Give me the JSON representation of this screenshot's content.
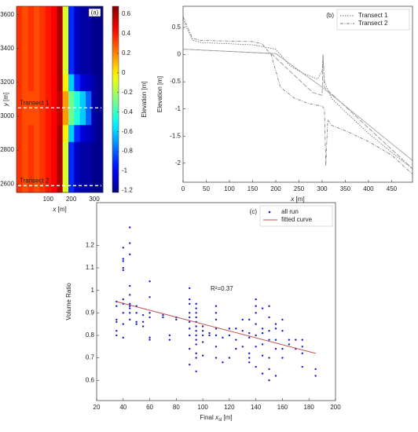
{
  "chart_data": [
    {
      "type": "heatmap",
      "label": "(a)",
      "x": [
        -25,
        0,
        25,
        50,
        75,
        100,
        125,
        150,
        175,
        200,
        225,
        250,
        275,
        300,
        325
      ],
      "y": [
        2600,
        2700,
        2800,
        2900,
        3000,
        3100,
        3200,
        3300,
        3400,
        3500,
        3600
      ],
      "z": [
        [
          0.35,
          0.3,
          0.35,
          0.3,
          0.35,
          0.4,
          0.45,
          0.6,
          -0.1,
          -0.9,
          -1.1,
          -1.15,
          -1.15,
          -1.2,
          -1.2
        ],
        [
          0.35,
          0.3,
          0.35,
          0.3,
          0.35,
          0.4,
          0.45,
          0.6,
          -0.1,
          -0.9,
          -1.1,
          -1.15,
          -1.15,
          -1.2,
          -1.2
        ],
        [
          0.35,
          0.3,
          0.35,
          0.3,
          0.35,
          0.4,
          0.45,
          0.6,
          -0.1,
          -0.9,
          -1.1,
          -1.15,
          -1.15,
          -1.2,
          -1.2
        ],
        [
          0.35,
          0.3,
          0.35,
          0.3,
          0.35,
          0.4,
          0.45,
          0.6,
          0.0,
          -0.6,
          -0.9,
          -1.05,
          -1.1,
          -1.15,
          -1.2
        ],
        [
          0.35,
          0.3,
          0.3,
          0.3,
          0.35,
          0.4,
          0.45,
          0.55,
          0.15,
          -0.3,
          -0.45,
          -0.6,
          -0.8,
          -1.15,
          -1.2
        ],
        [
          0.35,
          0.3,
          0.3,
          0.3,
          0.35,
          0.4,
          0.45,
          0.55,
          0.15,
          -0.3,
          -0.45,
          -0.6,
          -0.8,
          -1.15,
          -1.2
        ],
        [
          0.35,
          0.3,
          0.35,
          0.3,
          0.35,
          0.4,
          0.45,
          0.6,
          0.0,
          -0.6,
          -0.9,
          -1.05,
          -1.1,
          -1.15,
          -1.2
        ],
        [
          0.35,
          0.3,
          0.35,
          0.3,
          0.35,
          0.4,
          0.45,
          0.6,
          -0.1,
          -0.9,
          -1.1,
          -1.15,
          -1.15,
          -1.2,
          -1.2
        ],
        [
          0.35,
          0.3,
          0.35,
          0.3,
          0.35,
          0.4,
          0.45,
          0.6,
          -0.1,
          -0.9,
          -1.1,
          -1.15,
          -1.15,
          -1.2,
          -1.2
        ],
        [
          0.35,
          0.3,
          0.35,
          0.3,
          0.35,
          0.4,
          0.45,
          0.6,
          -0.1,
          -0.9,
          -1.1,
          -1.15,
          -1.15,
          -1.2,
          -1.2
        ],
        [
          0.35,
          0.3,
          0.35,
          0.3,
          0.35,
          0.4,
          0.45,
          0.6,
          -0.1,
          -0.9,
          -1.1,
          -1.15,
          -1.15,
          -1.2,
          -1.2
        ]
      ],
      "xlim": [
        -37.5,
        337.5
      ],
      "ylim": [
        2550,
        3650
      ],
      "xticks": [
        100,
        200,
        300
      ],
      "yticks": [
        2600,
        2800,
        3000,
        3200,
        3400,
        3600
      ],
      "xlabel": [
        {
          "text": "x",
          "italic": true
        },
        {
          "text": " [m]"
        }
      ],
      "ylabel": [
        {
          "text": "y",
          "italic": true
        },
        {
          "text": " [m]"
        }
      ],
      "colorbar": {
        "label": "Elevation [m]",
        "colormap": "jet",
        "clim": [
          -1.22,
          0.68
        ],
        "ticks": [
          0.6,
          0.4,
          0.2,
          0,
          -0.2,
          -0.4,
          -0.6,
          -0.8,
          -1,
          -1.2
        ]
      },
      "annotations": [
        {
          "text": "Transect 1",
          "y": 3050
        },
        {
          "text": "Transect 2",
          "y": 2590
        }
      ]
    },
    {
      "type": "line",
      "label": "(b)",
      "legend": "upper right",
      "xlim": [
        0,
        495
      ],
      "ylim": [
        -2.35,
        0.89
      ],
      "xticks": [
        0,
        50,
        100,
        150,
        200,
        250,
        300,
        350,
        400,
        450
      ],
      "yticks": [
        -2,
        -1.5,
        -1,
        -0.5,
        0,
        0.5
      ],
      "xlabel": [
        {
          "text": "x",
          "italic": true
        },
        {
          "text": " [m]"
        }
      ],
      "ylabel": [
        {
          "text": "Elevation [m]"
        }
      ],
      "series": [
        {
          "name": "Transect 1",
          "color": "#666666",
          "dash": "1.5 1.5",
          "x": [
            0,
            10,
            20,
            40,
            100,
            150,
            170,
            200,
            230,
            260,
            290,
            300,
            302,
            304,
            310,
            320,
            350,
            400,
            450,
            495
          ],
          "values": [
            0.65,
            0.45,
            0.27,
            0.22,
            0.2,
            0.18,
            0.15,
            0.1,
            -0.2,
            -0.35,
            -0.45,
            -0.3,
            0,
            -0.45,
            -0.6,
            -0.8,
            -1.05,
            -1.45,
            -1.8,
            -2.1
          ]
        },
        {
          "name": "Transect 2",
          "color": "#777777",
          "dash": "4 1.5 1 1.5",
          "x": [
            0,
            10,
            20,
            40,
            100,
            150,
            170,
            190,
            210,
            240,
            270,
            300,
            305,
            308,
            312,
            320,
            350,
            400,
            450,
            495
          ],
          "values": [
            0.7,
            0.5,
            0.3,
            0.26,
            0.25,
            0.24,
            0.2,
            0,
            -0.6,
            -0.8,
            -0.9,
            -0.95,
            -1,
            -2.05,
            -1.2,
            -1.3,
            -1.4,
            -1.6,
            -1.85,
            -2.2
          ]
        },
        {
          "color": "#888888",
          "dash": "6 2",
          "x": [
            0,
            190,
            280,
            300,
            302,
            305,
            495
          ],
          "values": [
            0.1,
            0.02,
            -0.7,
            -0.75,
            0,
            -0.6,
            -2.1
          ]
        },
        {
          "color": "#999999",
          "dash": "none",
          "x": [
            0,
            200,
            300,
            495
          ],
          "values": [
            0.1,
            0.02,
            -0.6,
            -1.95
          ]
        }
      ]
    },
    {
      "type": "scatter",
      "label": "(c)",
      "legend": "upper right",
      "xlim": [
        20,
        200
      ],
      "ylim": [
        0.51,
        1.39
      ],
      "xticks": [
        20,
        40,
        60,
        80,
        100,
        120,
        140,
        160,
        180,
        200
      ],
      "yticks": [
        0.6,
        0.7,
        0.8,
        0.9,
        1,
        1.1,
        1.2
      ],
      "xlabel": [
        {
          "text": "Final "
        },
        {
          "text": "x",
          "italic": true
        },
        {
          "text": "sl",
          "sub": true
        },
        {
          "text": " [m]"
        }
      ],
      "ylabel": [
        {
          "text": "Volume Ratio"
        }
      ],
      "annotation": "R²=0.37",
      "series": [
        {
          "name": "all run",
          "color": "#1a1acc",
          "mode": "markers",
          "x": [
            35,
            35,
            35,
            35,
            35,
            35,
            40,
            40,
            40,
            40,
            40,
            40,
            40,
            40,
            40,
            40,
            45,
            45,
            45,
            45,
            45,
            45,
            45,
            45,
            45,
            45,
            50,
            50,
            50,
            50,
            55,
            55,
            55,
            60,
            60,
            60,
            60,
            60,
            60,
            70,
            70,
            75,
            75,
            80,
            80,
            90,
            90,
            90,
            90,
            90,
            90,
            90,
            90,
            90,
            90,
            95,
            95,
            95,
            95,
            95,
            95,
            95,
            95,
            95,
            95,
            95,
            95,
            95,
            100,
            100,
            100,
            100,
            100,
            105,
            105,
            110,
            110,
            110,
            110,
            110,
            110,
            110,
            115,
            115,
            120,
            120,
            120,
            125,
            125,
            125,
            130,
            130,
            130,
            135,
            135,
            135,
            135,
            135,
            135,
            140,
            140,
            140,
            140,
            140,
            140,
            140,
            145,
            145,
            145,
            145,
            145,
            145,
            150,
            150,
            150,
            150,
            150,
            150,
            150,
            155,
            155,
            155,
            155,
            155,
            160,
            160,
            160,
            160,
            165,
            165,
            170,
            170,
            175,
            175,
            175,
            175,
            185,
            185
          ],
          "values": [
            0.8,
            0.82,
            0.86,
            0.87,
            0.93,
            0.95,
            0.79,
            0.85,
            0.9,
            0.94,
            0.96,
            1.09,
            1.1,
            1.13,
            1.14,
            1.19,
            0.87,
            0.9,
            0.92,
            0.93,
            0.94,
            0.98,
            1.02,
            1.16,
            1.21,
            1.28,
            0.85,
            0.86,
            0.9,
            0.93,
            0.84,
            0.86,
            0.89,
            0.78,
            0.79,
            0.88,
            0.9,
            0.97,
            1.04,
            0.88,
            0.89,
            0.78,
            0.8,
            0.87,
            0.88,
            0.67,
            0.74,
            0.8,
            0.83,
            0.86,
            0.88,
            0.9,
            0.94,
            0.96,
            1.01,
            0.64,
            0.7,
            0.72,
            0.76,
            0.78,
            0.8,
            0.82,
            0.84,
            0.86,
            0.88,
            0.9,
            0.92,
            0.94,
            0.71,
            0.77,
            0.8,
            0.82,
            0.84,
            0.8,
            0.81,
            0.7,
            0.75,
            0.8,
            0.83,
            0.87,
            0.9,
            0.93,
            0.68,
            0.79,
            0.7,
            0.8,
            0.83,
            0.74,
            0.78,
            0.83,
            0.75,
            0.82,
            0.87,
            0.68,
            0.7,
            0.72,
            0.79,
            0.81,
            0.87,
            0.66,
            0.75,
            0.8,
            0.85,
            0.9,
            0.93,
            0.96,
            0.63,
            0.71,
            0.76,
            0.81,
            0.83,
            0.92,
            0.6,
            0.65,
            0.7,
            0.78,
            0.82,
            0.88,
            0.93,
            0.62,
            0.74,
            0.78,
            0.83,
            0.85,
            0.7,
            0.74,
            0.82,
            0.87,
            0.76,
            0.78,
            0.74,
            0.78,
            0.66,
            0.72,
            0.75,
            0.78,
            0.62,
            0.65
          ]
        },
        {
          "name": "fitted curve",
          "color": "#c0504d",
          "mode": "line",
          "x": [
            35,
            185
          ],
          "values": [
            0.95,
            0.72
          ]
        }
      ]
    }
  ]
}
